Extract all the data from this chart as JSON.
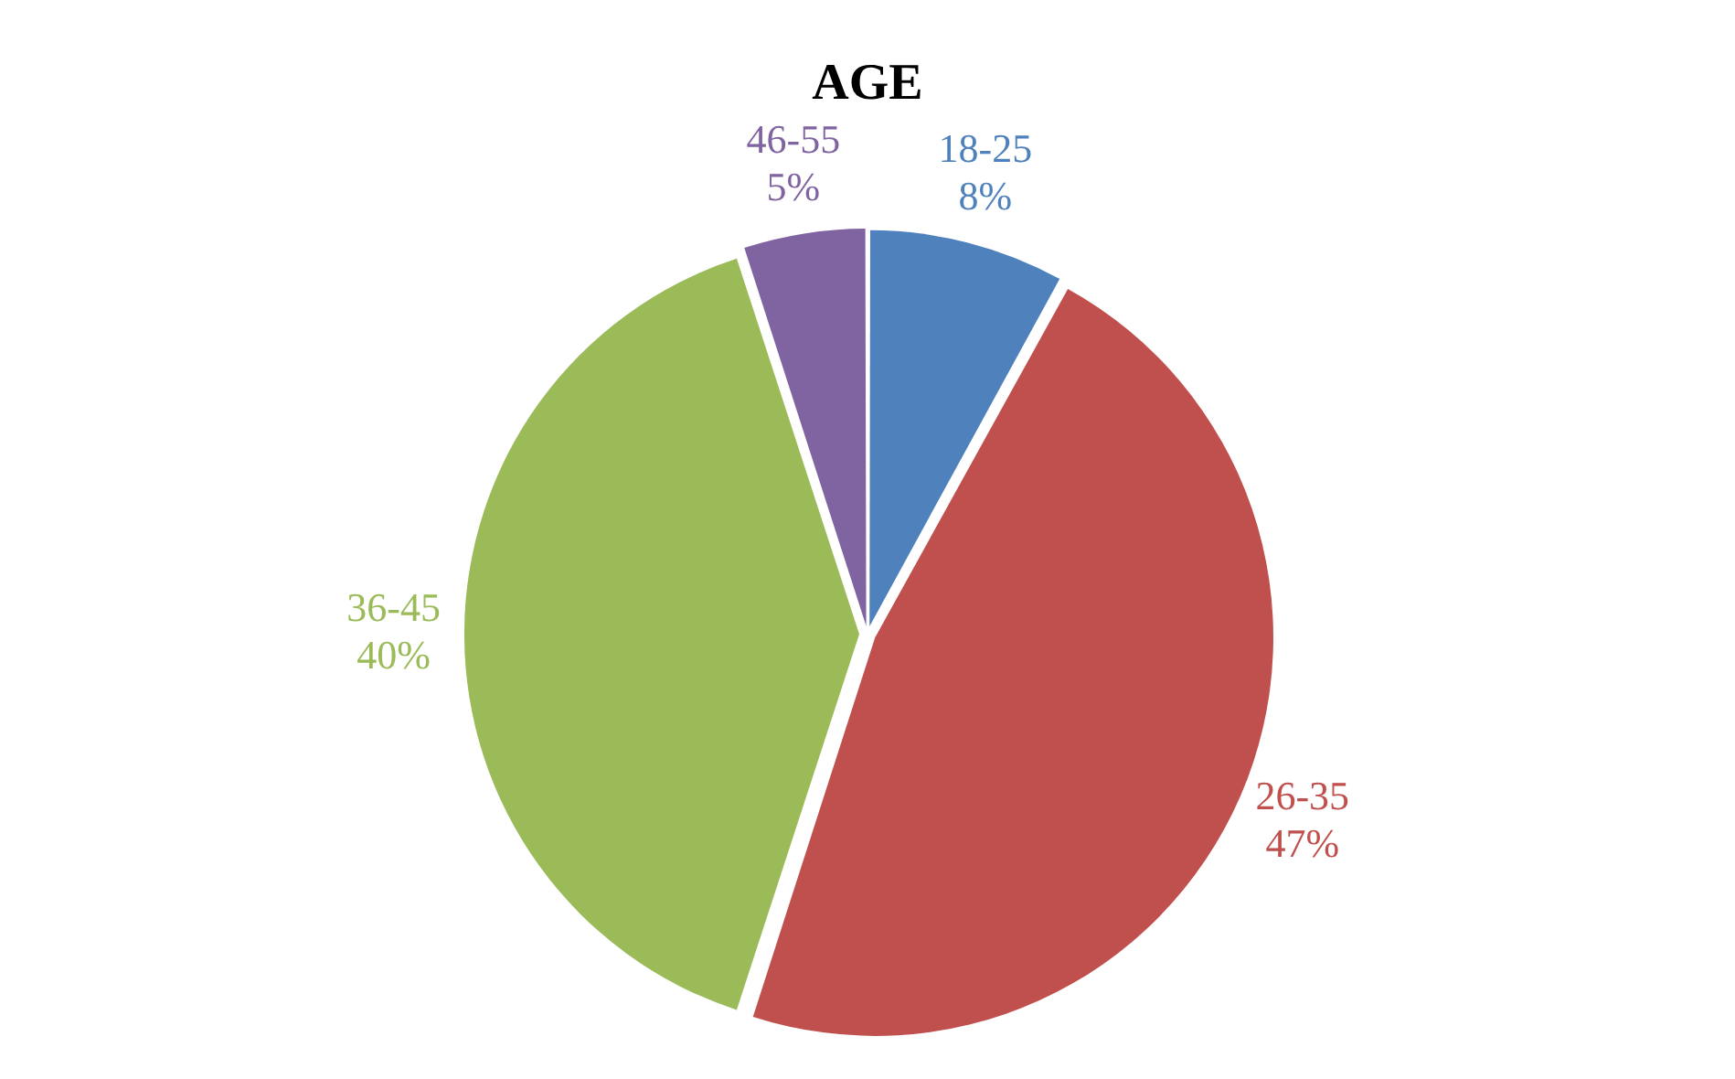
{
  "chart_data": {
    "type": "pie",
    "title": "AGE",
    "categories": [
      "18-25",
      "26-35",
      "36-45",
      "46-55"
    ],
    "values": [
      8,
      47,
      40,
      5
    ],
    "colors": [
      "#4f81bd",
      "#c0504d",
      "#9bbb59",
      "#8064a2"
    ],
    "value_labels": [
      "8%",
      "47%",
      "40%",
      "5%"
    ],
    "legend": false
  }
}
